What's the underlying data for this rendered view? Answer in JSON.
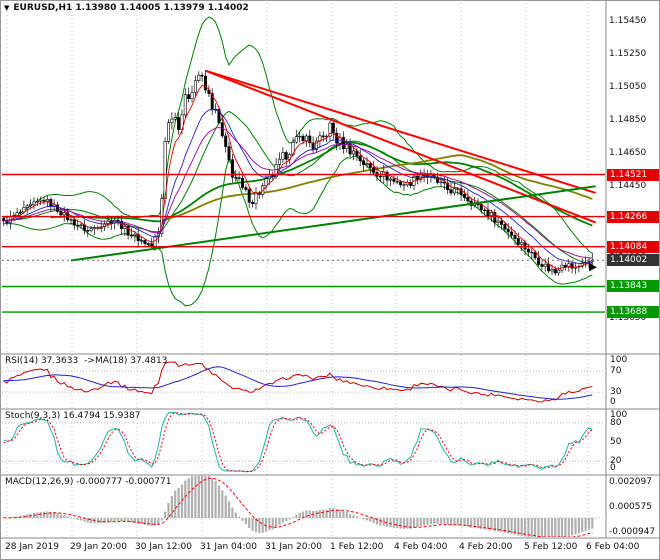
{
  "header": {
    "dropdown_icon": "▼",
    "symbol_info": "EURUSD,H1 1.13980 1.14005 1.13979 1.14002"
  },
  "chart_data": {
    "type": "candlestick",
    "symbol": "EURUSD",
    "timeframe": "H1",
    "ohlc_current": {
      "open": "1.13980",
      "high": "1.14005",
      "low": "1.13979",
      "close": "1.14002"
    },
    "bars_count": 176,
    "price_range": {
      "max": 1.1556,
      "min": 1.1344
    },
    "wick_size": 0.00035,
    "close_waypoints": [
      [
        0,
        1.1423
      ],
      [
        4,
        1.1428
      ],
      [
        8,
        1.1433
      ],
      [
        12,
        1.1437
      ],
      [
        16,
        1.1431
      ],
      [
        20,
        1.1424
      ],
      [
        25,
        1.1418
      ],
      [
        29,
        1.1422
      ],
      [
        33,
        1.1425
      ],
      [
        37,
        1.1417
      ],
      [
        41,
        1.1412
      ],
      [
        44,
        1.1409
      ],
      [
        46,
        1.1415
      ],
      [
        47,
        1.1438
      ],
      [
        48,
        1.1475
      ],
      [
        50,
        1.149
      ],
      [
        52,
        1.1484
      ],
      [
        54,
        1.1496
      ],
      [
        56,
        1.1506
      ],
      [
        58,
        1.1513
      ],
      [
        60,
        1.1503
      ],
      [
        62,
        1.1495
      ],
      [
        64,
        1.1482
      ],
      [
        66,
        1.1465
      ],
      [
        68,
        1.1454
      ],
      [
        71,
        1.1442
      ],
      [
        74,
        1.1437
      ],
      [
        77,
        1.1444
      ],
      [
        80,
        1.1452
      ],
      [
        83,
        1.1462
      ],
      [
        86,
        1.147
      ],
      [
        89,
        1.1476
      ],
      [
        92,
        1.1469
      ],
      [
        95,
        1.1474
      ],
      [
        97,
        1.1481
      ],
      [
        99,
        1.1473
      ],
      [
        102,
        1.1469
      ],
      [
        105,
        1.1464
      ],
      [
        108,
        1.1457
      ],
      [
        112,
        1.1453
      ],
      [
        116,
        1.1448
      ],
      [
        120,
        1.1446
      ],
      [
        124,
        1.1453
      ],
      [
        128,
        1.1449
      ],
      [
        132,
        1.1443
      ],
      [
        136,
        1.1441
      ],
      [
        140,
        1.1434
      ],
      [
        144,
        1.1429
      ],
      [
        148,
        1.1422
      ],
      [
        152,
        1.1414
      ],
      [
        156,
        1.1406
      ],
      [
        159,
        1.14
      ],
      [
        162,
        1.1395
      ],
      [
        164,
        1.1393
      ],
      [
        166,
        1.1399
      ],
      [
        168,
        1.1397
      ],
      [
        170,
        1.1395
      ],
      [
        172,
        1.13985
      ],
      [
        175,
        1.14002
      ]
    ],
    "levels": [
      {
        "price": 1.14521,
        "label": "1.14521",
        "color": "#e00000"
      },
      {
        "price": 1.14266,
        "label": "1.14266",
        "color": "#e00000"
      },
      {
        "price": 1.14084,
        "label": "1.14084",
        "color": "#e00000"
      },
      {
        "price": 1.13843,
        "label": "1.13843",
        "color": "#009900"
      },
      {
        "price": 1.13688,
        "label": "1.13688",
        "color": "#009900"
      }
    ],
    "current_price": {
      "price": 1.14002,
      "label": "1.14002",
      "color": "#333333"
    },
    "trendlines": [
      {
        "from": [
          60,
          1.1515
        ],
        "to": [
          176,
          1.1423
        ],
        "color": "#ff0000",
        "width": 2
      },
      {
        "from": [
          60,
          1.1515
        ],
        "to": [
          176,
          1.1441
        ],
        "color": "#ff0000",
        "width": 2
      },
      {
        "from": [
          20,
          1.14
        ],
        "to": [
          176,
          1.1445
        ],
        "color": "#008000",
        "width": 2
      }
    ],
    "overlays": {
      "bollinger": {
        "period": 20,
        "deviation": 2,
        "color": "#008000"
      },
      "ma_fast": {
        "period": 5,
        "color": "#dd0000"
      },
      "ma_mid": {
        "period": 13,
        "color": "#2222cc"
      },
      "ma_slow": {
        "period": 21,
        "color": "#990099"
      },
      "ma_long": {
        "period": 55,
        "color": "#008000"
      },
      "ma_longer": {
        "period": 89,
        "color": "#808000"
      }
    },
    "price_axis_ticks": [
      "1.15450",
      "1.15250",
      "1.15050",
      "1.14850",
      "1.14650",
      "1.14450",
      "1.14250",
      "1.14050",
      "1.13850",
      "1.13650"
    ],
    "time_axis_ticks": [
      "28 Jan 2019",
      "29 Jan 20:00",
      "30 Jan 12:00",
      "31 Jan 04:00",
      "31 Jan 20:00",
      "1 Feb 12:00",
      "4 Feb 04:00",
      "4 Feb 20:00",
      "5 Feb 12:00",
      "6 Feb 04:00"
    ]
  },
  "panels": {
    "rsi": {
      "label": "RSI(14) 37.3633",
      "ma_label": "->MA(18) 37.4813",
      "ticks": [
        "100",
        "70",
        "30",
        "0"
      ],
      "tick_values": [
        100,
        70,
        30,
        0
      ],
      "levels": [
        70,
        30
      ],
      "line_color": "#cc0000",
      "ma_color": "#2222cc"
    },
    "stoch": {
      "label": "Stoch(9,3,3) 16.4794 15.9387",
      "ticks": [
        "100",
        "80",
        "50",
        "20",
        "0"
      ],
      "tick_values": [
        100,
        80,
        50,
        20,
        0
      ],
      "levels": [
        80,
        20
      ],
      "main_color": "#20b2aa",
      "signal_color": "#ff0000"
    },
    "macd": {
      "label": "MACD(12,26,9) -0.000777 -0.000771",
      "ticks": [
        "0.002097",
        "0.000575",
        "-0.000947"
      ],
      "tick_values": [
        0.002097,
        0.000575,
        -0.000947
      ],
      "range": {
        "max": 0.002097,
        "min": -0.000947
      },
      "hist_color": "#b0b0b0",
      "signal_color": "#ff0000"
    }
  }
}
